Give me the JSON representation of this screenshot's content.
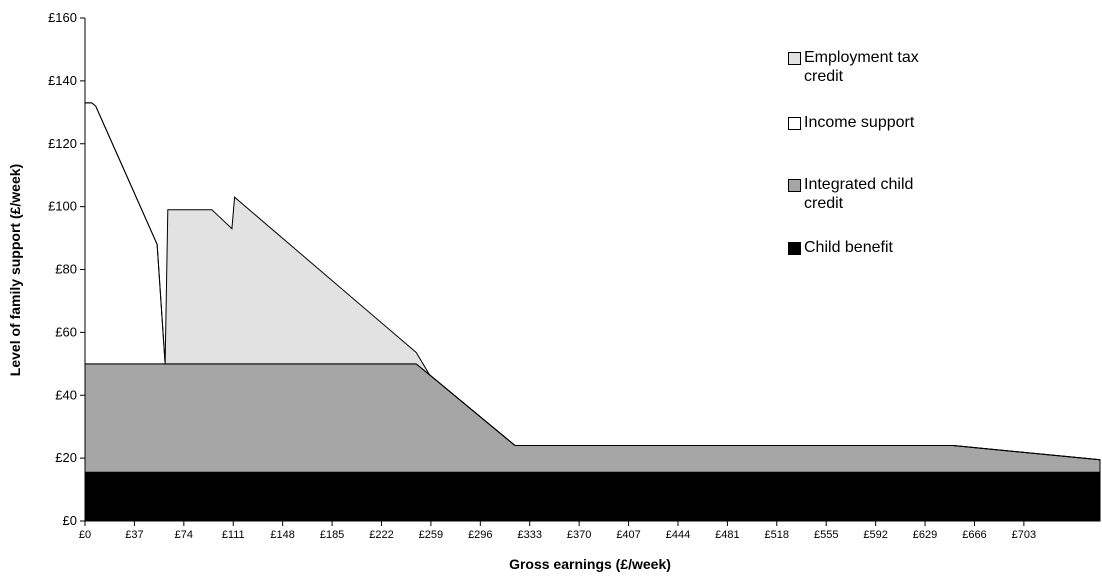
{
  "chart_data": {
    "type": "stacked-area",
    "y_label": "Level of family support (£/week)",
    "x_label": "Gross earnings (£/week)",
    "x": [
      0,
      5,
      8,
      54,
      60,
      62,
      95,
      100,
      110,
      112,
      248,
      258,
      322,
      650,
      760
    ],
    "series": [
      {
        "name": "Child benefit",
        "color": "#000000",
        "values": [
          15.5,
          15.5,
          15.5,
          15.5,
          15.5,
          15.5,
          15.5,
          15.5,
          15.5,
          15.5,
          15.5,
          15.5,
          15.5,
          15.5,
          15.5
        ]
      },
      {
        "name": "Integrated child credit",
        "color": "#a6a6a6",
        "values": [
          34.5,
          34.5,
          34.5,
          34.5,
          34.5,
          34.5,
          34.5,
          34.5,
          34.5,
          34.5,
          34.5,
          31,
          8.5,
          8.5,
          4
        ]
      },
      {
        "name": "Income support",
        "color": "#ffffff",
        "values": [
          83,
          83,
          82,
          38,
          0,
          0,
          0,
          0,
          0,
          0,
          0,
          0,
          0,
          0,
          0
        ]
      },
      {
        "name": "Employment tax credit",
        "color": "#e2e2e2",
        "values": [
          0,
          0,
          0,
          0,
          0,
          49,
          49,
          47,
          43,
          53,
          3.6,
          0,
          0,
          0,
          0
        ]
      }
    ],
    "xlim": [
      0,
      760
    ],
    "xticks": [
      {
        "value": 0,
        "label": "£0"
      },
      {
        "value": 37,
        "label": "£37"
      },
      {
        "value": 74,
        "label": "£74"
      },
      {
        "value": 111,
        "label": "£111"
      },
      {
        "value": 148,
        "label": "£148"
      },
      {
        "value": 185,
        "label": "£185"
      },
      {
        "value": 222,
        "label": "£222"
      },
      {
        "value": 259,
        "label": "£259"
      },
      {
        "value": 296,
        "label": "£296"
      },
      {
        "value": 333,
        "label": "£333"
      },
      {
        "value": 370,
        "label": "£370"
      },
      {
        "value": 407,
        "label": "£407"
      },
      {
        "value": 444,
        "label": "£444"
      },
      {
        "value": 481,
        "label": "£481"
      },
      {
        "value": 518,
        "label": "£518"
      },
      {
        "value": 555,
        "label": "£555"
      },
      {
        "value": 592,
        "label": "£592"
      },
      {
        "value": 629,
        "label": "£629"
      },
      {
        "value": 666,
        "label": "£666"
      },
      {
        "value": 703,
        "label": "£703"
      }
    ],
    "ylim": [
      0,
      160
    ],
    "yticks": [
      {
        "value": 0,
        "label": "£0"
      },
      {
        "value": 20,
        "label": "£20"
      },
      {
        "value": 40,
        "label": "£40"
      },
      {
        "value": 60,
        "label": "£60"
      },
      {
        "value": 80,
        "label": "£80"
      },
      {
        "value": 100,
        "label": "£100"
      },
      {
        "value": 120,
        "label": "£120"
      },
      {
        "value": 140,
        "label": "£140"
      },
      {
        "value": 160,
        "label": "£160"
      }
    ],
    "legend": "right"
  }
}
